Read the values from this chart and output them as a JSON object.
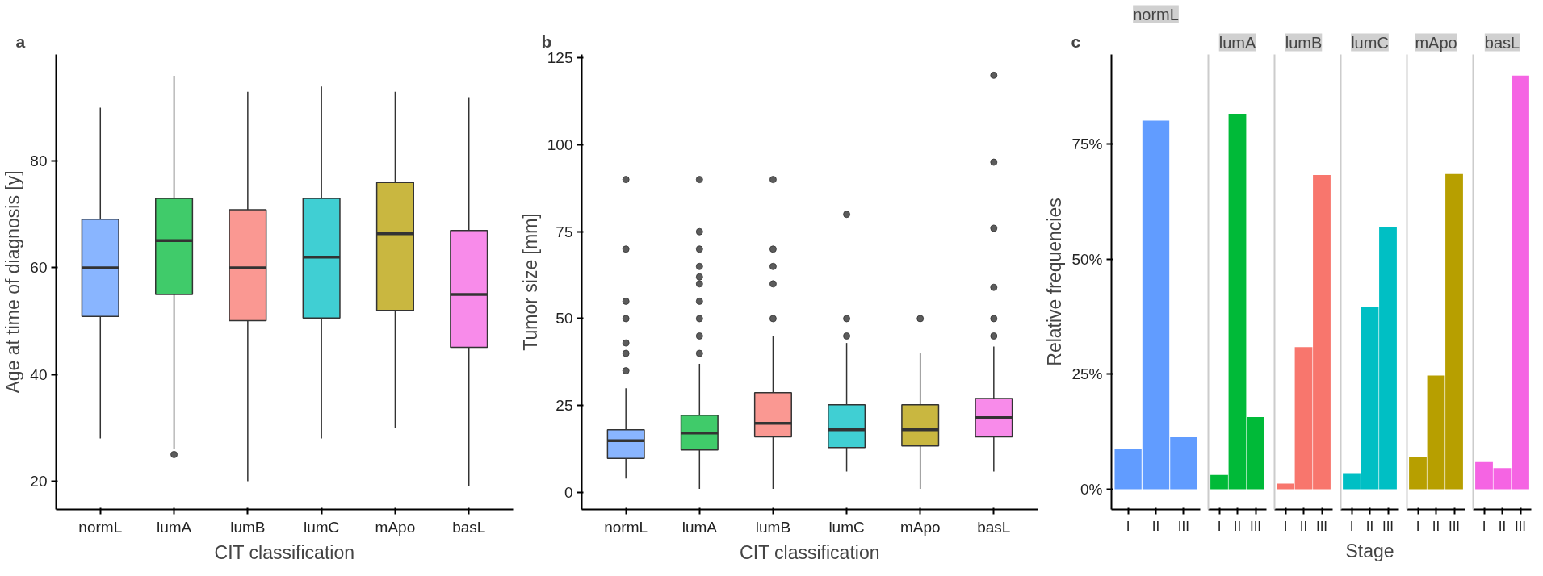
{
  "chart_data": [
    {
      "type": "box",
      "title": "a",
      "xlabel": "CIT classification",
      "ylabel": "Age at time of diagnosis [y]",
      "categories": [
        "normL",
        "lumA",
        "lumB",
        "lumC",
        "mApo",
        "basL"
      ],
      "colors": [
        "#619cff",
        "#00ba38",
        "#f8766d",
        "#00bfc4",
        "#b79f00",
        "#f564e3"
      ],
      "ylim": [
        14.7,
        100
      ],
      "yticks": [
        20,
        40,
        60,
        80
      ],
      "boxes": [
        {
          "low": 28,
          "q1": 50.9,
          "median": 60,
          "q3": 69.1,
          "high": 90
        },
        {
          "low": 26,
          "q1": 55,
          "median": 65.1,
          "q3": 73,
          "high": 96,
          "outliers": [
            25
          ]
        },
        {
          "low": 20,
          "q1": 50.1,
          "median": 60,
          "q3": 70.9,
          "high": 93
        },
        {
          "low": 28,
          "q1": 50.6,
          "median": 62,
          "q3": 73,
          "high": 94
        },
        {
          "low": 30,
          "q1": 52,
          "median": 66.4,
          "q3": 76,
          "high": 93
        },
        {
          "low": 19,
          "q1": 45.1,
          "median": 55,
          "q3": 67,
          "high": 92
        }
      ]
    },
    {
      "type": "box",
      "title": "b",
      "xlabel": "CIT classification",
      "ylabel": "Tumor size [mm]",
      "categories": [
        "normL",
        "lumA",
        "lumB",
        "lumC",
        "mApo",
        "basL"
      ],
      "colors": [
        "#619cff",
        "#00ba38",
        "#f8766d",
        "#00bfc4",
        "#b79f00",
        "#f564e3"
      ],
      "ylim": [
        -4.9,
        126
      ],
      "yticks": [
        0,
        25,
        50,
        75,
        100,
        125
      ],
      "boxes": [
        {
          "low": 4,
          "q1": 9.8,
          "median": 14.9,
          "q3": 18,
          "high": 30,
          "outliers": [
            35,
            40,
            43,
            50,
            55,
            70,
            90
          ]
        },
        {
          "low": 1,
          "q1": 12.2,
          "median": 17.1,
          "q3": 22.2,
          "high": 37,
          "outliers": [
            40,
            45,
            50,
            55,
            60,
            62,
            65,
            70,
            75,
            90
          ]
        },
        {
          "low": 1,
          "q1": 16,
          "median": 19.9,
          "q3": 28.7,
          "high": 45,
          "outliers": [
            50,
            60,
            65,
            70,
            90
          ]
        },
        {
          "low": 6,
          "q1": 12.9,
          "median": 18,
          "q3": 25.2,
          "high": 43,
          "outliers": [
            45,
            50,
            80
          ]
        },
        {
          "low": 1,
          "q1": 13.4,
          "median": 18,
          "q3": 25.2,
          "high": 40,
          "outliers": [
            50
          ]
        },
        {
          "low": 6,
          "q1": 16,
          "median": 21.5,
          "q3": 27,
          "high": 42,
          "outliers": [
            45,
            50,
            59,
            76,
            95,
            120
          ]
        }
      ]
    },
    {
      "type": "bar",
      "title": "c",
      "subtitle": "normL",
      "ylabel": "Relative frequencies",
      "categories": [
        "I",
        "II",
        "III"
      ],
      "values": [
        8.7,
        80.1,
        11.3
      ],
      "colors": [
        "#619cff",
        "#619cff",
        "#619cff"
      ],
      "ylim": [
        -4.4,
        94.5
      ],
      "yticks": [
        {
          "value": 0,
          "label": "0%"
        },
        {
          "value": 25,
          "label": "25%"
        },
        {
          "value": 50,
          "label": "50%"
        },
        {
          "value": 75,
          "label": "75%"
        }
      ]
    },
    {
      "type": "bar",
      "subtitle": "lumA",
      "categories": [
        "I",
        "II",
        "III"
      ],
      "values": [
        3.1,
        81.6,
        15.7
      ],
      "colors": [
        "#00ba38",
        "#00ba38",
        "#00ba38"
      ],
      "ylim": [
        -4.4,
        94.5
      ],
      "tick_labels": "x"
    },
    {
      "type": "bar",
      "subtitle": "lumB",
      "categories": [
        "I",
        "II",
        "III"
      ],
      "values": [
        1.2,
        30.9,
        68.3
      ],
      "colors": [
        "#f8766d",
        "#f8766d",
        "#f8766d"
      ],
      "ylim": [
        -4.4,
        94.5
      ],
      "tick_labels": "x"
    },
    {
      "type": "bar",
      "subtitle": "lumC",
      "xlabel": "Stage",
      "categories": [
        "I",
        "II",
        "III"
      ],
      "values": [
        3.5,
        39.6,
        56.9
      ],
      "colors": [
        "#00bfc4",
        "#00bfc4",
        "#00bfc4"
      ],
      "ylim": [
        -4.4,
        94.5
      ],
      "tick_labels": "x"
    },
    {
      "type": "bar",
      "subtitle": "mApo",
      "categories": [
        "I",
        "II",
        "III"
      ],
      "values": [
        6.9,
        24.7,
        68.5
      ],
      "colors": [
        "#b79f00",
        "#b79f00",
        "#b79f00"
      ],
      "ylim": [
        -4.4,
        94.5
      ],
      "tick_labels": "x"
    },
    {
      "type": "bar",
      "subtitle": "basL",
      "categories": [
        "I",
        "II",
        "III"
      ],
      "values": [
        5.9,
        4.6,
        89.9
      ],
      "colors": [
        "#f564e3",
        "#f564e3",
        "#f564e3"
      ],
      "ylim": [
        -4.4,
        94.5
      ],
      "tick_labels": "x"
    }
  ]
}
